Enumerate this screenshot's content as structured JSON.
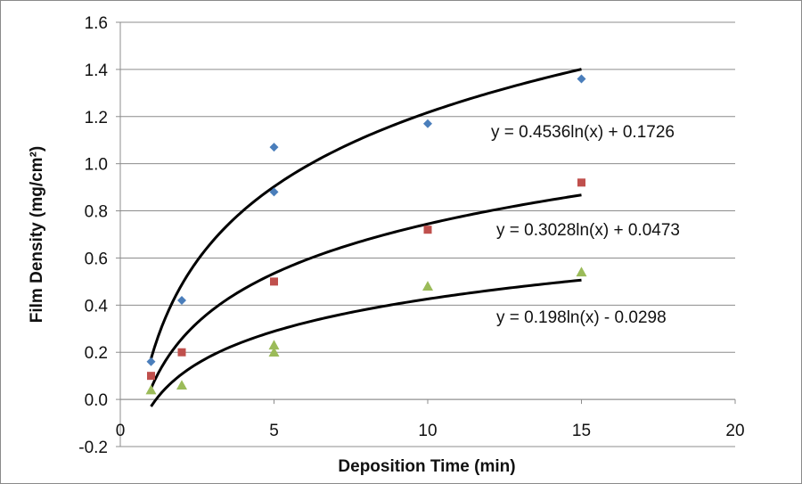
{
  "chart_data": {
    "type": "scatter",
    "xlabel": "Deposition Time (min)",
    "ylabel": "Film Density (mg/cm²)",
    "xlim": [
      0,
      20
    ],
    "ylim": [
      -0.2,
      1.6
    ],
    "xticks": [
      0,
      5,
      10,
      15,
      20
    ],
    "yticks": [
      -0.2,
      0.0,
      0.2,
      0.4,
      0.6,
      0.8,
      1.0,
      1.2,
      1.4,
      1.6
    ],
    "ytick_labels": [
      "-0.2",
      "0.0",
      "0.2",
      "0.4",
      "0.6",
      "0.8",
      "1.0",
      "1.2",
      "1.4",
      "1.6"
    ],
    "grid": "horizontal",
    "legend": "none",
    "series": [
      {
        "name": "series-1",
        "marker": "diamond",
        "color": "#4a7ebb",
        "points": [
          [
            1,
            0.16
          ],
          [
            2,
            0.42
          ],
          [
            5,
            0.88
          ],
          [
            5,
            1.07
          ],
          [
            10,
            1.17
          ],
          [
            15,
            1.36
          ]
        ],
        "trendline": {
          "a": 0.4536,
          "b": 0.1726,
          "x_range": [
            1,
            15
          ]
        },
        "equation": "y = 0.4536ln(x) + 0.1726"
      },
      {
        "name": "series-2",
        "marker": "square",
        "color": "#c0504d",
        "points": [
          [
            1,
            0.1
          ],
          [
            2,
            0.2
          ],
          [
            5,
            0.5
          ],
          [
            10,
            0.72
          ],
          [
            15,
            0.92
          ]
        ],
        "trendline": {
          "a": 0.3028,
          "b": 0.0473,
          "x_range": [
            1,
            15
          ]
        },
        "equation": "y = 0.3028ln(x) + 0.0473"
      },
      {
        "name": "series-3",
        "marker": "triangle",
        "color": "#9bbb59",
        "points": [
          [
            1,
            0.04
          ],
          [
            2,
            0.06
          ],
          [
            5,
            0.2
          ],
          [
            5,
            0.23
          ],
          [
            10,
            0.48
          ],
          [
            15,
            0.54
          ]
        ],
        "trendline": {
          "a": 0.198,
          "b": -0.0298,
          "x_range": [
            1,
            15
          ]
        },
        "equation": "y = 0.198ln(x) - 0.0298"
      }
    ]
  }
}
